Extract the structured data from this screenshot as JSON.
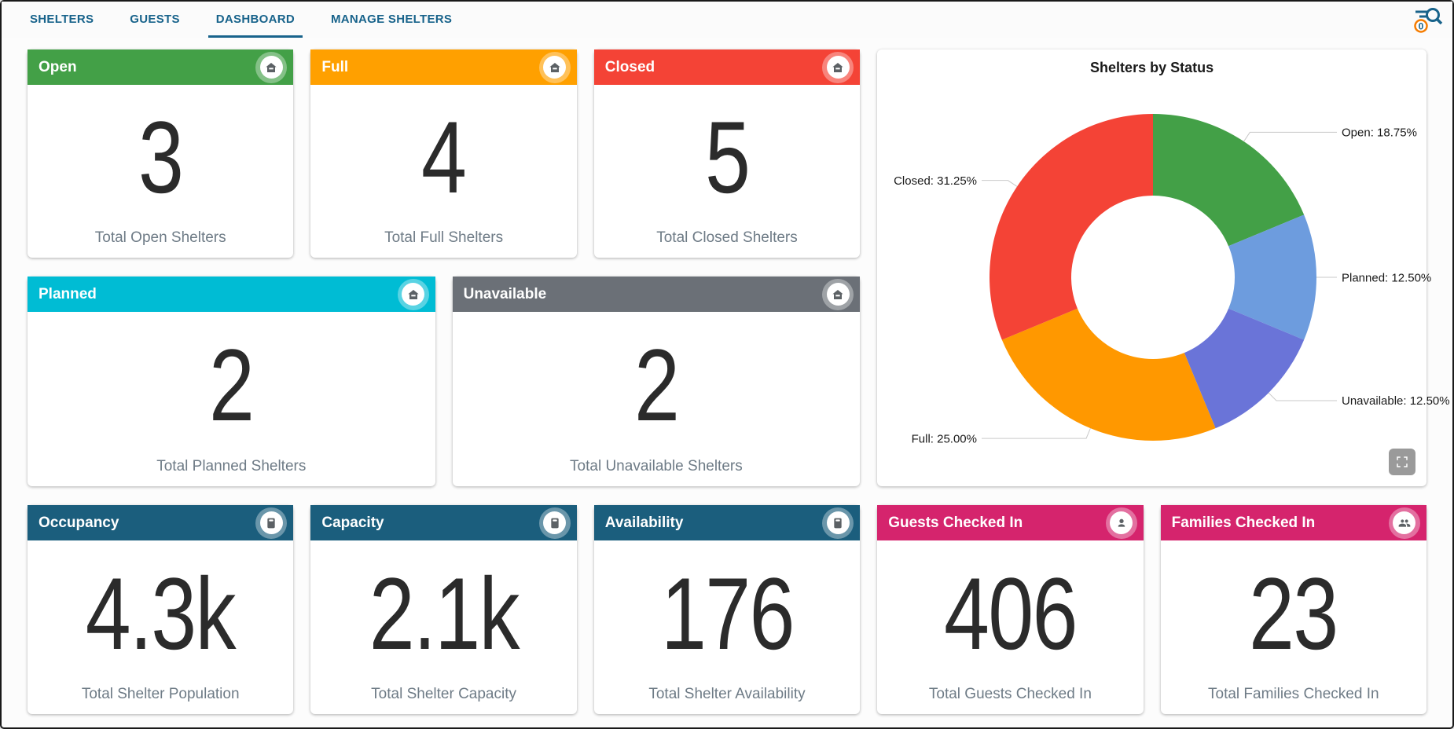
{
  "nav": {
    "tabs": [
      {
        "label": "SHELTERS"
      },
      {
        "label": "GUESTS"
      },
      {
        "label": "DASHBOARD"
      },
      {
        "label": "MANAGE SHELTERS"
      }
    ],
    "active_tab": "DASHBOARD",
    "accent_color": "#18638B",
    "search_badge_count": "0",
    "search_badge_ring_color": "#F57C00"
  },
  "cards": {
    "open": {
      "title": "Open",
      "value": "3",
      "caption": "Total Open Shelters",
      "header_color": "#43A047"
    },
    "full": {
      "title": "Full",
      "value": "4",
      "caption": "Total Full Shelters",
      "header_color": "#FFA000"
    },
    "closed": {
      "title": "Closed",
      "value": "5",
      "caption": "Total Closed Shelters",
      "header_color": "#F44336"
    },
    "planned": {
      "title": "Planned",
      "value": "2",
      "caption": "Total Planned Shelters",
      "header_color": "#00BCD4"
    },
    "unavailable": {
      "title": "Unavailable",
      "value": "2",
      "caption": "Total Unavailable Shelters",
      "header_color": "#6B7077"
    },
    "occupancy": {
      "title": "Occupancy",
      "value": "4.3k",
      "caption": "Total Shelter Population",
      "header_color": "#1B5E7D"
    },
    "capacity": {
      "title": "Capacity",
      "value": "2.1k",
      "caption": "Total Shelter Capacity",
      "header_color": "#1B5E7D"
    },
    "availability": {
      "title": "Availability",
      "value": "176",
      "caption": "Total Shelter Availability",
      "header_color": "#1B5E7D"
    },
    "guests": {
      "title": "Guests Checked In",
      "value": "406",
      "caption": "Total Guests Checked In",
      "header_color": "#D5246D"
    },
    "families": {
      "title": "Families Checked In",
      "value": "23",
      "caption": "Total Families Checked In",
      "header_color": "#D5246D"
    }
  },
  "chart_data": {
    "type": "pie",
    "subtype": "donut",
    "title": "Shelters by Status",
    "categories": [
      "Open",
      "Planned",
      "Unavailable",
      "Full",
      "Closed"
    ],
    "values": [
      18.75,
      12.5,
      12.5,
      25.0,
      31.25
    ],
    "counts": [
      3,
      2,
      2,
      4,
      5
    ],
    "labels": [
      "Open: 18.75%",
      "Planned: 12.50%",
      "Unavailable: 12.50%",
      "Full: 25.00%",
      "Closed: 31.25%"
    ],
    "colors": [
      "#43A047",
      "#6D9CDE",
      "#6A74D8",
      "#FF9800",
      "#F44336"
    ],
    "start_angle_deg": 0,
    "direction": "clockwise",
    "inner_radius_ratio": 0.5,
    "label_position": "outside-leader-lines",
    "legend": "none"
  }
}
